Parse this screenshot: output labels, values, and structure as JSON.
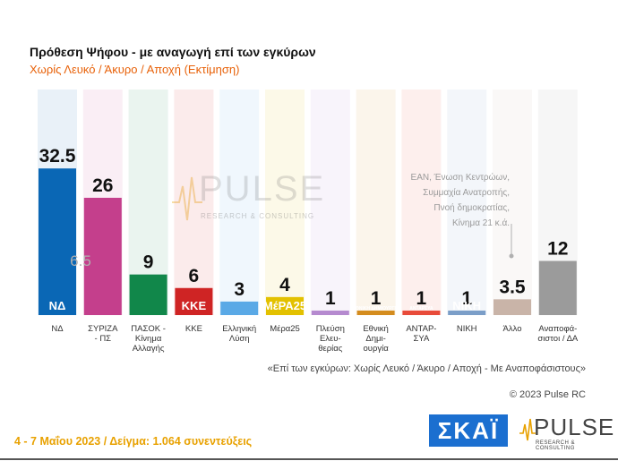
{
  "header": {
    "title": "Πρόθεση Ψήφου - με αναγωγή επί των εγκύρων",
    "subtitle": "Χωρίς Λευκό / Άκυρο / Αποχή  (Εκτίμηση)"
  },
  "chart_data": {
    "type": "bar",
    "categories": [
      "ΝΔ",
      "ΣΥΡΙΖΑ - ΠΣ",
      "ΠΑΣΟΚ - Κίνημα Αλλαγής",
      "ΚΚΕ",
      "Ελληνική Λύση",
      "Μέρα25",
      "Πλεύση Ελευ- θερίας",
      "Εθνική Δημι- ουργία",
      "ΑΝΤΑΡ- ΣΥΑ",
      "ΝΙΚΗ",
      "Άλλο",
      "Αναποφά- σιστοι / ΔΑ"
    ],
    "category_lines": [
      [
        "ΝΔ"
      ],
      [
        "ΣΥΡΙΖΑ",
        "- ΠΣ"
      ],
      [
        "ΠΑΣΟΚ -",
        "Κίνημα",
        "Αλλαγής"
      ],
      [
        "ΚΚΕ"
      ],
      [
        "Ελληνική",
        "Λύση"
      ],
      [
        "Μέρα25"
      ],
      [
        "Πλεύση",
        "Ελευ-",
        "θερίας"
      ],
      [
        "Εθνική",
        "Δημι-",
        "ουργία"
      ],
      [
        "ΑΝΤΑΡ-",
        "ΣΥΑ"
      ],
      [
        "ΝΙΚΗ"
      ],
      [
        "Άλλο"
      ],
      [
        "Αναποφά-",
        "σιστοι / ΔΑ"
      ]
    ],
    "values": [
      32.5,
      26,
      9,
      6,
      3,
      4,
      1,
      1,
      1,
      1,
      3.5,
      12
    ],
    "value_labels": [
      "32.5",
      "26",
      "9",
      "6",
      "3",
      "4",
      "1",
      "1",
      "1",
      "1",
      "3.5",
      "12"
    ],
    "colors": [
      "#0a67b5",
      "#c43f8c",
      "#11874a",
      "#cf2424",
      "#5aa9e6",
      "#e3c100",
      "#b58acf",
      "#d48c1e",
      "#e84b3a",
      "#7b9ec8",
      "#c9b4a8",
      "#9b9b9b"
    ],
    "ylim": [
      0,
      50
    ],
    "difference_annotation": "6.5",
    "other_note": [
      "ΕΑΝ, Ένωση Κεντρώων,",
      "Συμμαχία Ανατροπής,",
      "Πνοή δημοκρατίας,",
      "Κίνημα 21   κ.ά."
    ],
    "logos": [
      "ΝΔ",
      "",
      "",
      "ΚΚΕ",
      "",
      "ΜέΡΑ25",
      "",
      "ΕΘΝΙΚΗ ΔΗΜΙΟΥΡΓΙΑ",
      "ΑΝΤΑΡΣΥΑ",
      "ΝΙΚΗ",
      "",
      ""
    ]
  },
  "watermark": {
    "word": "PULSE",
    "tagline": "RESEARCH & CONSULTING"
  },
  "footnote": "«Επί των εγκύρων:  Χωρίς Λευκό / Άκυρο / Αποχή - Με Αναποφάσιστους»",
  "copyright": "© 2023 Pulse RC",
  "footer": "4 - 7  Μαΐου  2023  /  Δείγμα:  1.064 συνεντεύξεις",
  "brand": {
    "skai": "ΣΚΑΪ",
    "pulse": "PULSE",
    "pulse_tagline": "RESEARCH & CONSULTING"
  }
}
